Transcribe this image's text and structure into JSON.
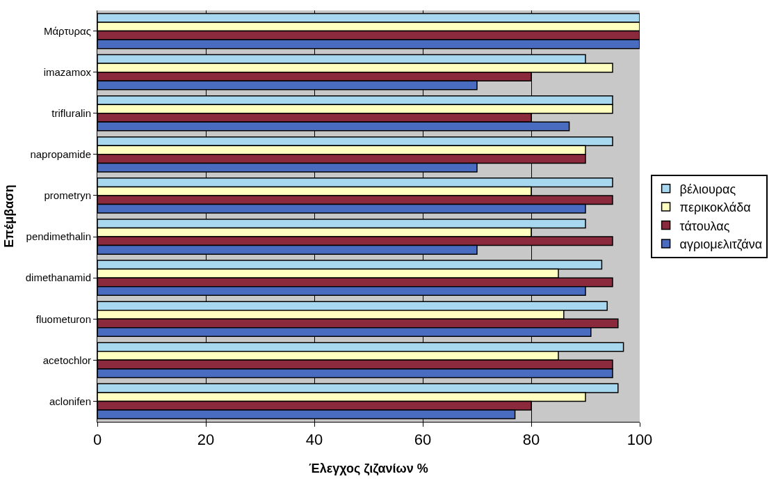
{
  "chart_data": {
    "type": "bar",
    "orientation": "horizontal",
    "xlabel": "Έλεγχος ζιζανίων %",
    "ylabel": "Επέμβαση",
    "categories": [
      "Μάρτυρας",
      "imazamox",
      "trifluralin",
      "napropamide",
      "prometryn",
      "pendimethalin",
      "dimethanamid",
      "fluometuron",
      "acetochlor",
      "aclonifen"
    ],
    "series": [
      {
        "name": "βέλιουρας",
        "color": "#a8d8f0",
        "values": [
          100,
          90,
          95,
          95,
          95,
          90,
          93,
          94,
          97,
          96
        ]
      },
      {
        "name": "περικοκλάδα",
        "color": "#ffffc0",
        "values": [
          100,
          95,
          95,
          90,
          80,
          80,
          85,
          86,
          85,
          90
        ]
      },
      {
        "name": "τάτουλας",
        "color": "#8b2a3c",
        "values": [
          100,
          80,
          80,
          90,
          95,
          95,
          95,
          96,
          95,
          80
        ]
      },
      {
        "name": "αγριομελιτζάνα",
        "color": "#4a6cc0",
        "values": [
          100,
          70,
          87,
          70,
          90,
          70,
          90,
          91,
          95,
          77
        ]
      }
    ],
    "xlim": [
      0,
      100
    ],
    "xticks": [
      0,
      20,
      40,
      60,
      80,
      100
    ],
    "grid": "x",
    "legend": "right"
  }
}
